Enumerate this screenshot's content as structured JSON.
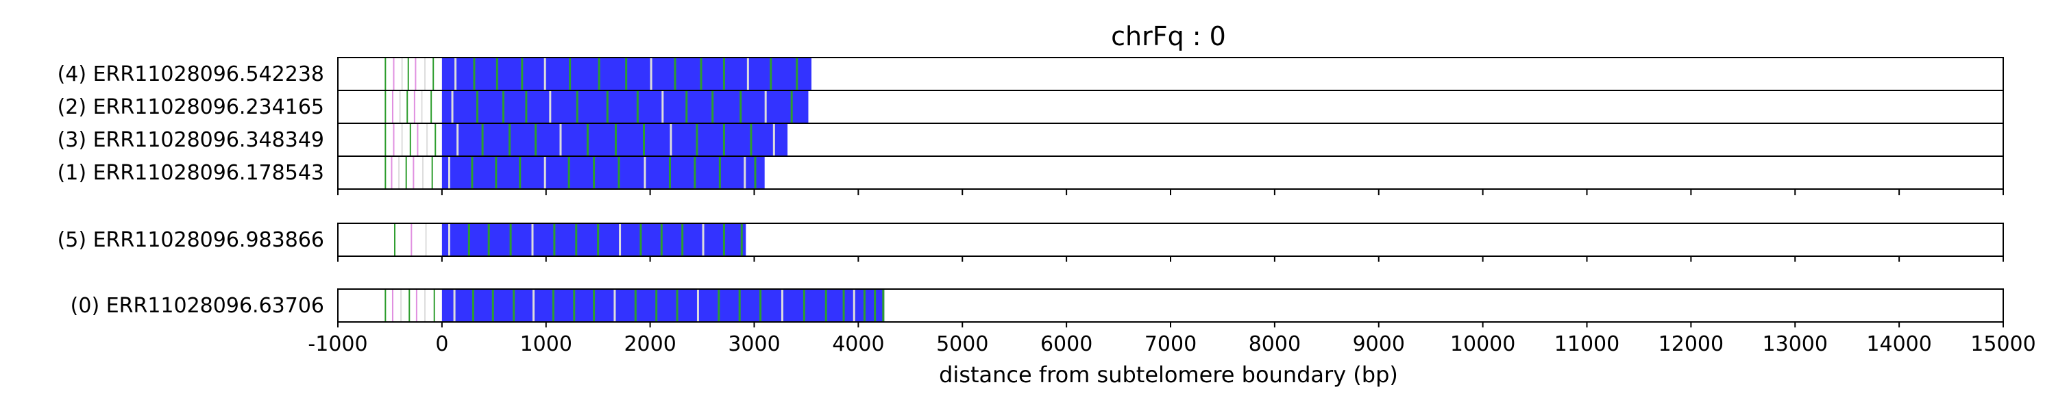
{
  "chart_data": {
    "type": "read-track",
    "title": "chrFq : 0",
    "xlabel": "distance from subtelomere boundary (bp)",
    "ylabel": "",
    "xlim": [
      -1000,
      15000
    ],
    "xticks": [
      "-1000",
      "0",
      "1000",
      "2000",
      "3000",
      "4000",
      "5000",
      "6000",
      "7000",
      "8000",
      "9000",
      "10000",
      "11000",
      "12000",
      "13000",
      "14000",
      "15000"
    ],
    "grid": "x-dashed",
    "colors": {
      "repeat": "#3333ff",
      "variant_green": "#2e9e2e",
      "variant_pink": "#e090e0",
      "variant_light": "#dddddd",
      "grid": "#bbbbbb",
      "frame": "#000000"
    },
    "panels": [
      {
        "reads": [
          {
            "label": "(4) ERR11028096.542238",
            "start": -550,
            "repeat_start": 0,
            "end": 3550,
            "variants": [
              -550,
              -470,
              -390,
              -330,
              -260,
              -170,
              -90,
              120,
              300,
              520,
              760,
              980,
              1220,
              1500,
              1760,
              2000,
              2230,
              2480,
              2700,
              2930,
              3150,
              3400
            ]
          },
          {
            "label": "(2) ERR11028096.234165",
            "start": -550,
            "repeat_start": 0,
            "end": 3520,
            "variants": [
              -550,
              -480,
              -410,
              -340,
              -270,
              -200,
              -110,
              90,
              330,
              580,
              800,
              1030,
              1290,
              1580,
              1870,
              2110,
              2340,
              2590,
              2860,
              3100,
              3350
            ]
          },
          {
            "label": "(3) ERR11028096.348349",
            "start": -550,
            "repeat_start": 0,
            "end": 3320,
            "variants": [
              -550,
              -470,
              -390,
              -310,
              -240,
              -150,
              -70,
              140,
              380,
              640,
              890,
              1130,
              1390,
              1660,
              1930,
              2190,
              2440,
              2700,
              2960,
              3180
            ]
          },
          {
            "label": "(1) ERR11028096.178543",
            "start": -550,
            "repeat_start": 0,
            "end": 3100,
            "variants": [
              -550,
              -490,
              -420,
              -350,
              -280,
              -190,
              -100,
              60,
              280,
              510,
              740,
              980,
              1210,
              1450,
              1690,
              1940,
              2180,
              2420,
              2660,
              2900,
              3000
            ]
          }
        ]
      },
      {
        "reads": [
          {
            "label": "(5) ERR11028096.983866",
            "start": -550,
            "repeat_start": 0,
            "end": 2920,
            "variants": [
              -460,
              -300,
              -160,
              60,
              250,
              440,
              650,
              860,
              1070,
              1280,
              1490,
              1700,
              1900,
              2100,
              2300,
              2500,
              2700,
              2870
            ]
          }
        ]
      },
      {
        "reads": [
          {
            "label": "(0) ERR11028096.63706",
            "start": -550,
            "repeat_start": 0,
            "end": 4250,
            "variants": [
              -550,
              -480,
              -400,
              -320,
              -250,
              -170,
              -80,
              110,
              290,
              480,
              680,
              870,
              1060,
              1260,
              1450,
              1650,
              1850,
              2050,
              2250,
              2450,
              2650,
              2850,
              3050,
              3260,
              3470,
              3680,
              3850,
              3950,
              4050,
              4150,
              4230
            ]
          }
        ]
      }
    ]
  }
}
